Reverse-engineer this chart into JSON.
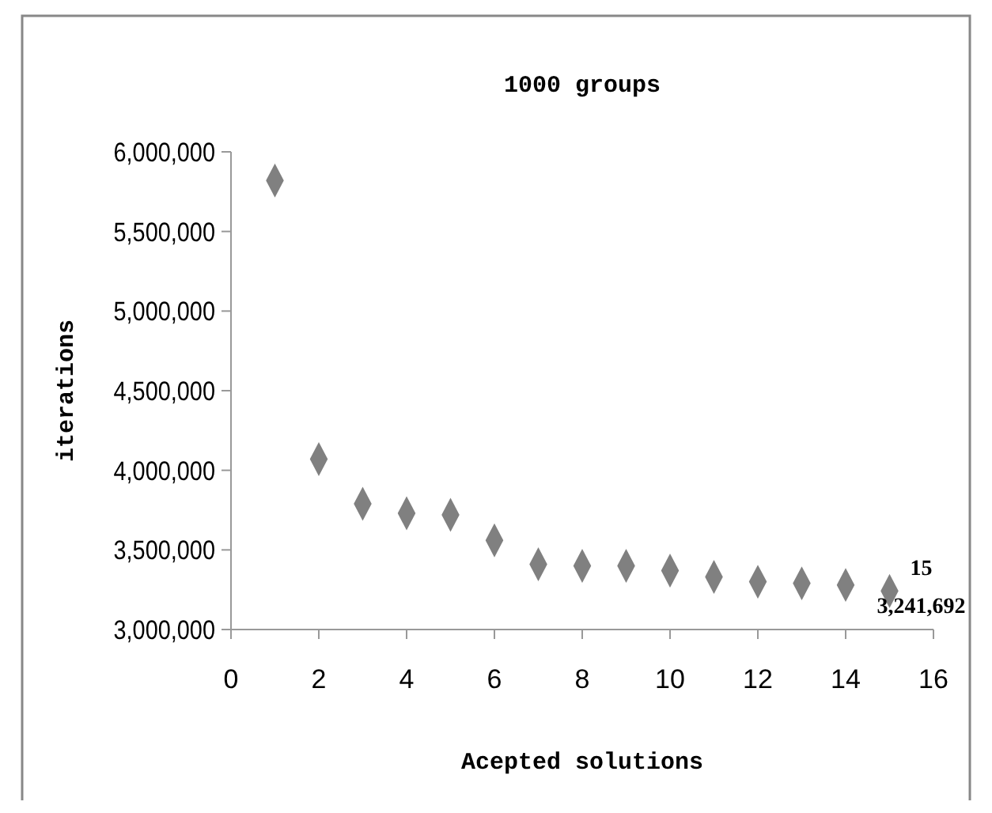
{
  "chart_data": {
    "type": "scatter",
    "title": "1000 groups",
    "xlabel": "Acepted solutions",
    "ylabel": "iterations",
    "x": [
      1,
      2,
      3,
      4,
      5,
      6,
      7,
      8,
      9,
      10,
      11,
      12,
      13,
      14,
      15
    ],
    "series": [
      {
        "color": "#808080",
        "values": [
          5820000,
          4070000,
          3790000,
          3730000,
          3720000,
          3560000,
          3410000,
          3400000,
          3400000,
          3370000,
          3330000,
          3300000,
          3290000,
          3280000,
          3241692
        ]
      }
    ],
    "marker": "diamond",
    "grid": false,
    "xlim": [
      0,
      16
    ],
    "xticks": [
      0,
      2,
      4,
      6,
      8,
      10,
      12,
      14,
      16
    ],
    "ylim": [
      3000000,
      6000000
    ],
    "yticks": [
      {
        "value": 3000000,
        "label": "3,000,000"
      },
      {
        "value": 3500000,
        "label": "3,500,000"
      },
      {
        "value": 4000000,
        "label": "4,000,000"
      },
      {
        "value": 4500000,
        "label": "4,500,000"
      },
      {
        "value": 5000000,
        "label": "5,000,000"
      },
      {
        "value": 5500000,
        "label": "5,500,000"
      },
      {
        "value": 6000000,
        "label": "6,000,000"
      }
    ],
    "annotations": [
      {
        "text": "15\n3,241,692",
        "x": 15,
        "y": 3241692
      }
    ]
  }
}
